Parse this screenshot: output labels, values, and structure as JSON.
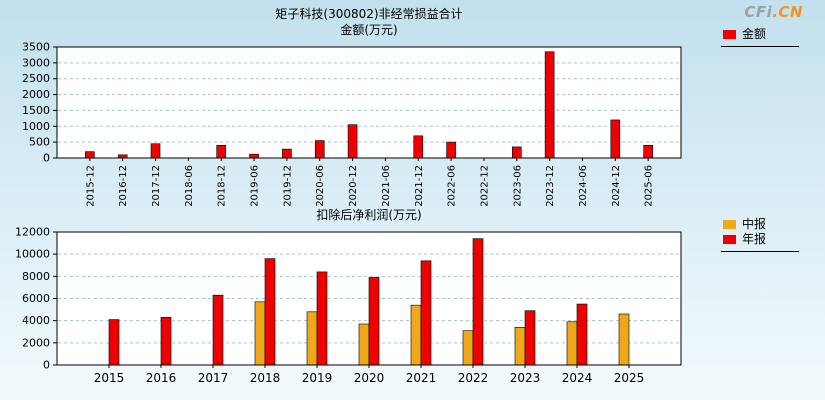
{
  "site": {
    "logo_prefix": "CFi",
    "logo_suffix": ".CN"
  },
  "colors": {
    "plot_bg": "#ffffff",
    "axis": "#000000",
    "grid": "#a4c4d6",
    "red": "#ee0000",
    "yellow": "#f0a818",
    "logo_gray": "#97a2a9",
    "logo_orange": "#f7941d"
  },
  "chart_data": [
    {
      "type": "bar",
      "title": "矩子科技(300802)非经常损益合计",
      "subtitle": "金额(万元)",
      "categories": [
        "2015-12",
        "2016-12",
        "2017-12",
        "2018-06",
        "2018-12",
        "2019-06",
        "2019-12",
        "2020-06",
        "2020-12",
        "2021-06",
        "2021-12",
        "2022-06",
        "2022-12",
        "2023-06",
        "2023-12",
        "2024-06",
        "2024-12",
        "2025-06"
      ],
      "series": [
        {
          "name": "金额",
          "color": "#ee0000",
          "values": [
            200,
            100,
            450,
            null,
            400,
            120,
            280,
            550,
            1050,
            null,
            700,
            500,
            null,
            350,
            3350,
            null,
            1200,
            400
          ]
        }
      ],
      "ylim": [
        0,
        3500
      ],
      "yticks": [
        0,
        500,
        1000,
        1500,
        2000,
        2500,
        3000,
        3500
      ],
      "grid": true,
      "legend_position": "right-top"
    },
    {
      "type": "bar",
      "title": "扣除后净利润(万元)",
      "categories": [
        "2015",
        "2016",
        "2017",
        "2018",
        "2019",
        "2020",
        "2021",
        "2022",
        "2023",
        "2024",
        "2025"
      ],
      "series": [
        {
          "name": "中报",
          "color": "#f0a818",
          "values": [
            null,
            null,
            null,
            5700,
            4800,
            3700,
            5400,
            3100,
            3400,
            3900,
            4600
          ]
        },
        {
          "name": "年报",
          "color": "#ee0000",
          "values": [
            4100,
            4300,
            6300,
            9600,
            8400,
            7900,
            9400,
            11400,
            4900,
            5500,
            null
          ]
        }
      ],
      "ylim": [
        0,
        12000
      ],
      "yticks": [
        0,
        2000,
        4000,
        6000,
        8000,
        10000,
        12000
      ],
      "grid": true,
      "legend_position": "right-top"
    }
  ]
}
